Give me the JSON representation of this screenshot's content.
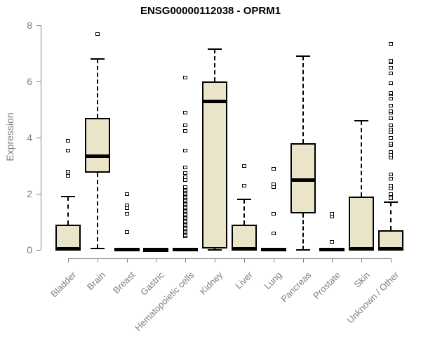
{
  "chart_data": {
    "type": "boxplot",
    "title": "ENSG00000112038 - OPRM1",
    "xlabel": "",
    "ylabel": "Expression",
    "ylim": [
      0,
      8
    ],
    "yticks": [
      0,
      2,
      4,
      6,
      8
    ],
    "grid": false,
    "legend": "none",
    "colors": {
      "box_fill": "#eae4c8",
      "box_border": "#000000",
      "median": "#000000",
      "axis": "#808080",
      "tick_label": "#7e7e7e",
      "title": "#000000"
    },
    "categories": [
      "Bladder",
      "Brain",
      "Breast",
      "Gastric",
      "Hematopoietic cells",
      "Kidney",
      "Liver",
      "Lung",
      "Pancreas",
      "Prostate",
      "Skin",
      "Unknown / Other"
    ],
    "boxes": [
      {
        "category": "Bladder",
        "q1": 0,
        "median": 0.05,
        "q3": 0.9,
        "whisker_low": 0,
        "whisker_high": 1.9,
        "outliers": [
          2.65,
          2.8,
          3.55,
          3.9
        ]
      },
      {
        "category": "Brain",
        "q1": 2.75,
        "median": 3.35,
        "q3": 4.7,
        "whisker_low": 0.05,
        "whisker_high": 6.8,
        "outliers": [
          7.7
        ]
      },
      {
        "category": "Breast",
        "q1": 0,
        "median": 0.02,
        "q3": 0.05,
        "whisker_low": 0,
        "whisker_high": 0.05,
        "outliers": [
          0.65,
          1.3,
          1.5,
          1.6,
          2.0
        ]
      },
      {
        "category": "Gastric",
        "q1": 0,
        "median": 0.02,
        "q3": 0.02,
        "whisker_low": 0,
        "whisker_high": 0.02,
        "outliers": []
      },
      {
        "category": "Hematopoietic cells",
        "q1": 0,
        "median": 0.02,
        "q3": 0.05,
        "whisker_low": 0,
        "whisker_high": 0.05,
        "outliers": [
          0.5,
          0.55,
          0.6,
          0.65,
          0.7,
          0.75,
          0.8,
          0.85,
          0.9,
          0.95,
          1.0,
          1.05,
          1.1,
          1.15,
          1.2,
          1.25,
          1.3,
          1.35,
          1.4,
          1.45,
          1.5,
          1.55,
          1.6,
          1.65,
          1.7,
          1.75,
          1.8,
          1.85,
          1.9,
          1.95,
          2.0,
          2.05,
          2.1,
          2.15,
          2.2,
          2.25,
          2.5,
          2.6,
          2.75,
          2.95,
          3.55,
          4.25,
          4.45,
          4.9,
          6.15
        ]
      },
      {
        "category": "Kidney",
        "q1": 0.05,
        "median": 5.3,
        "q3": 6.0,
        "whisker_low": 0,
        "whisker_high": 7.15,
        "outliers": []
      },
      {
        "category": "Liver",
        "q1": 0,
        "median": 0.05,
        "q3": 0.9,
        "whisker_low": 0,
        "whisker_high": 1.8,
        "outliers": [
          2.3,
          3.0
        ]
      },
      {
        "category": "Lung",
        "q1": 0,
        "median": 0.02,
        "q3": 0.05,
        "whisker_low": 0,
        "whisker_high": 0.05,
        "outliers": [
          0.6,
          1.3,
          2.25,
          2.35,
          2.9
        ]
      },
      {
        "category": "Pancreas",
        "q1": 1.3,
        "median": 2.5,
        "q3": 3.8,
        "whisker_low": 0,
        "whisker_high": 6.9,
        "outliers": []
      },
      {
        "category": "Prostate",
        "q1": 0,
        "median": 0.02,
        "q3": 0.05,
        "whisker_low": 0,
        "whisker_high": 0.05,
        "outliers": [
          0.3,
          1.2,
          1.28
        ]
      },
      {
        "category": "Skin",
        "q1": 0,
        "median": 0.05,
        "q3": 1.9,
        "whisker_low": 0,
        "whisker_high": 4.6,
        "outliers": []
      },
      {
        "category": "Unknown / Other",
        "q1": 0,
        "median": 0.05,
        "q3": 0.7,
        "whisker_low": 0,
        "whisker_high": 1.7,
        "outliers": [
          1.85,
          1.95,
          2.0,
          2.2,
          2.3,
          2.55,
          2.7,
          3.3,
          3.4,
          3.5,
          3.75,
          3.8,
          4.0,
          4.2,
          4.3,
          4.45,
          4.7,
          4.9,
          4.95,
          5.15,
          5.4,
          5.55,
          5.6,
          5.95,
          6.3,
          6.5,
          6.7,
          6.75,
          7.35
        ]
      }
    ]
  }
}
